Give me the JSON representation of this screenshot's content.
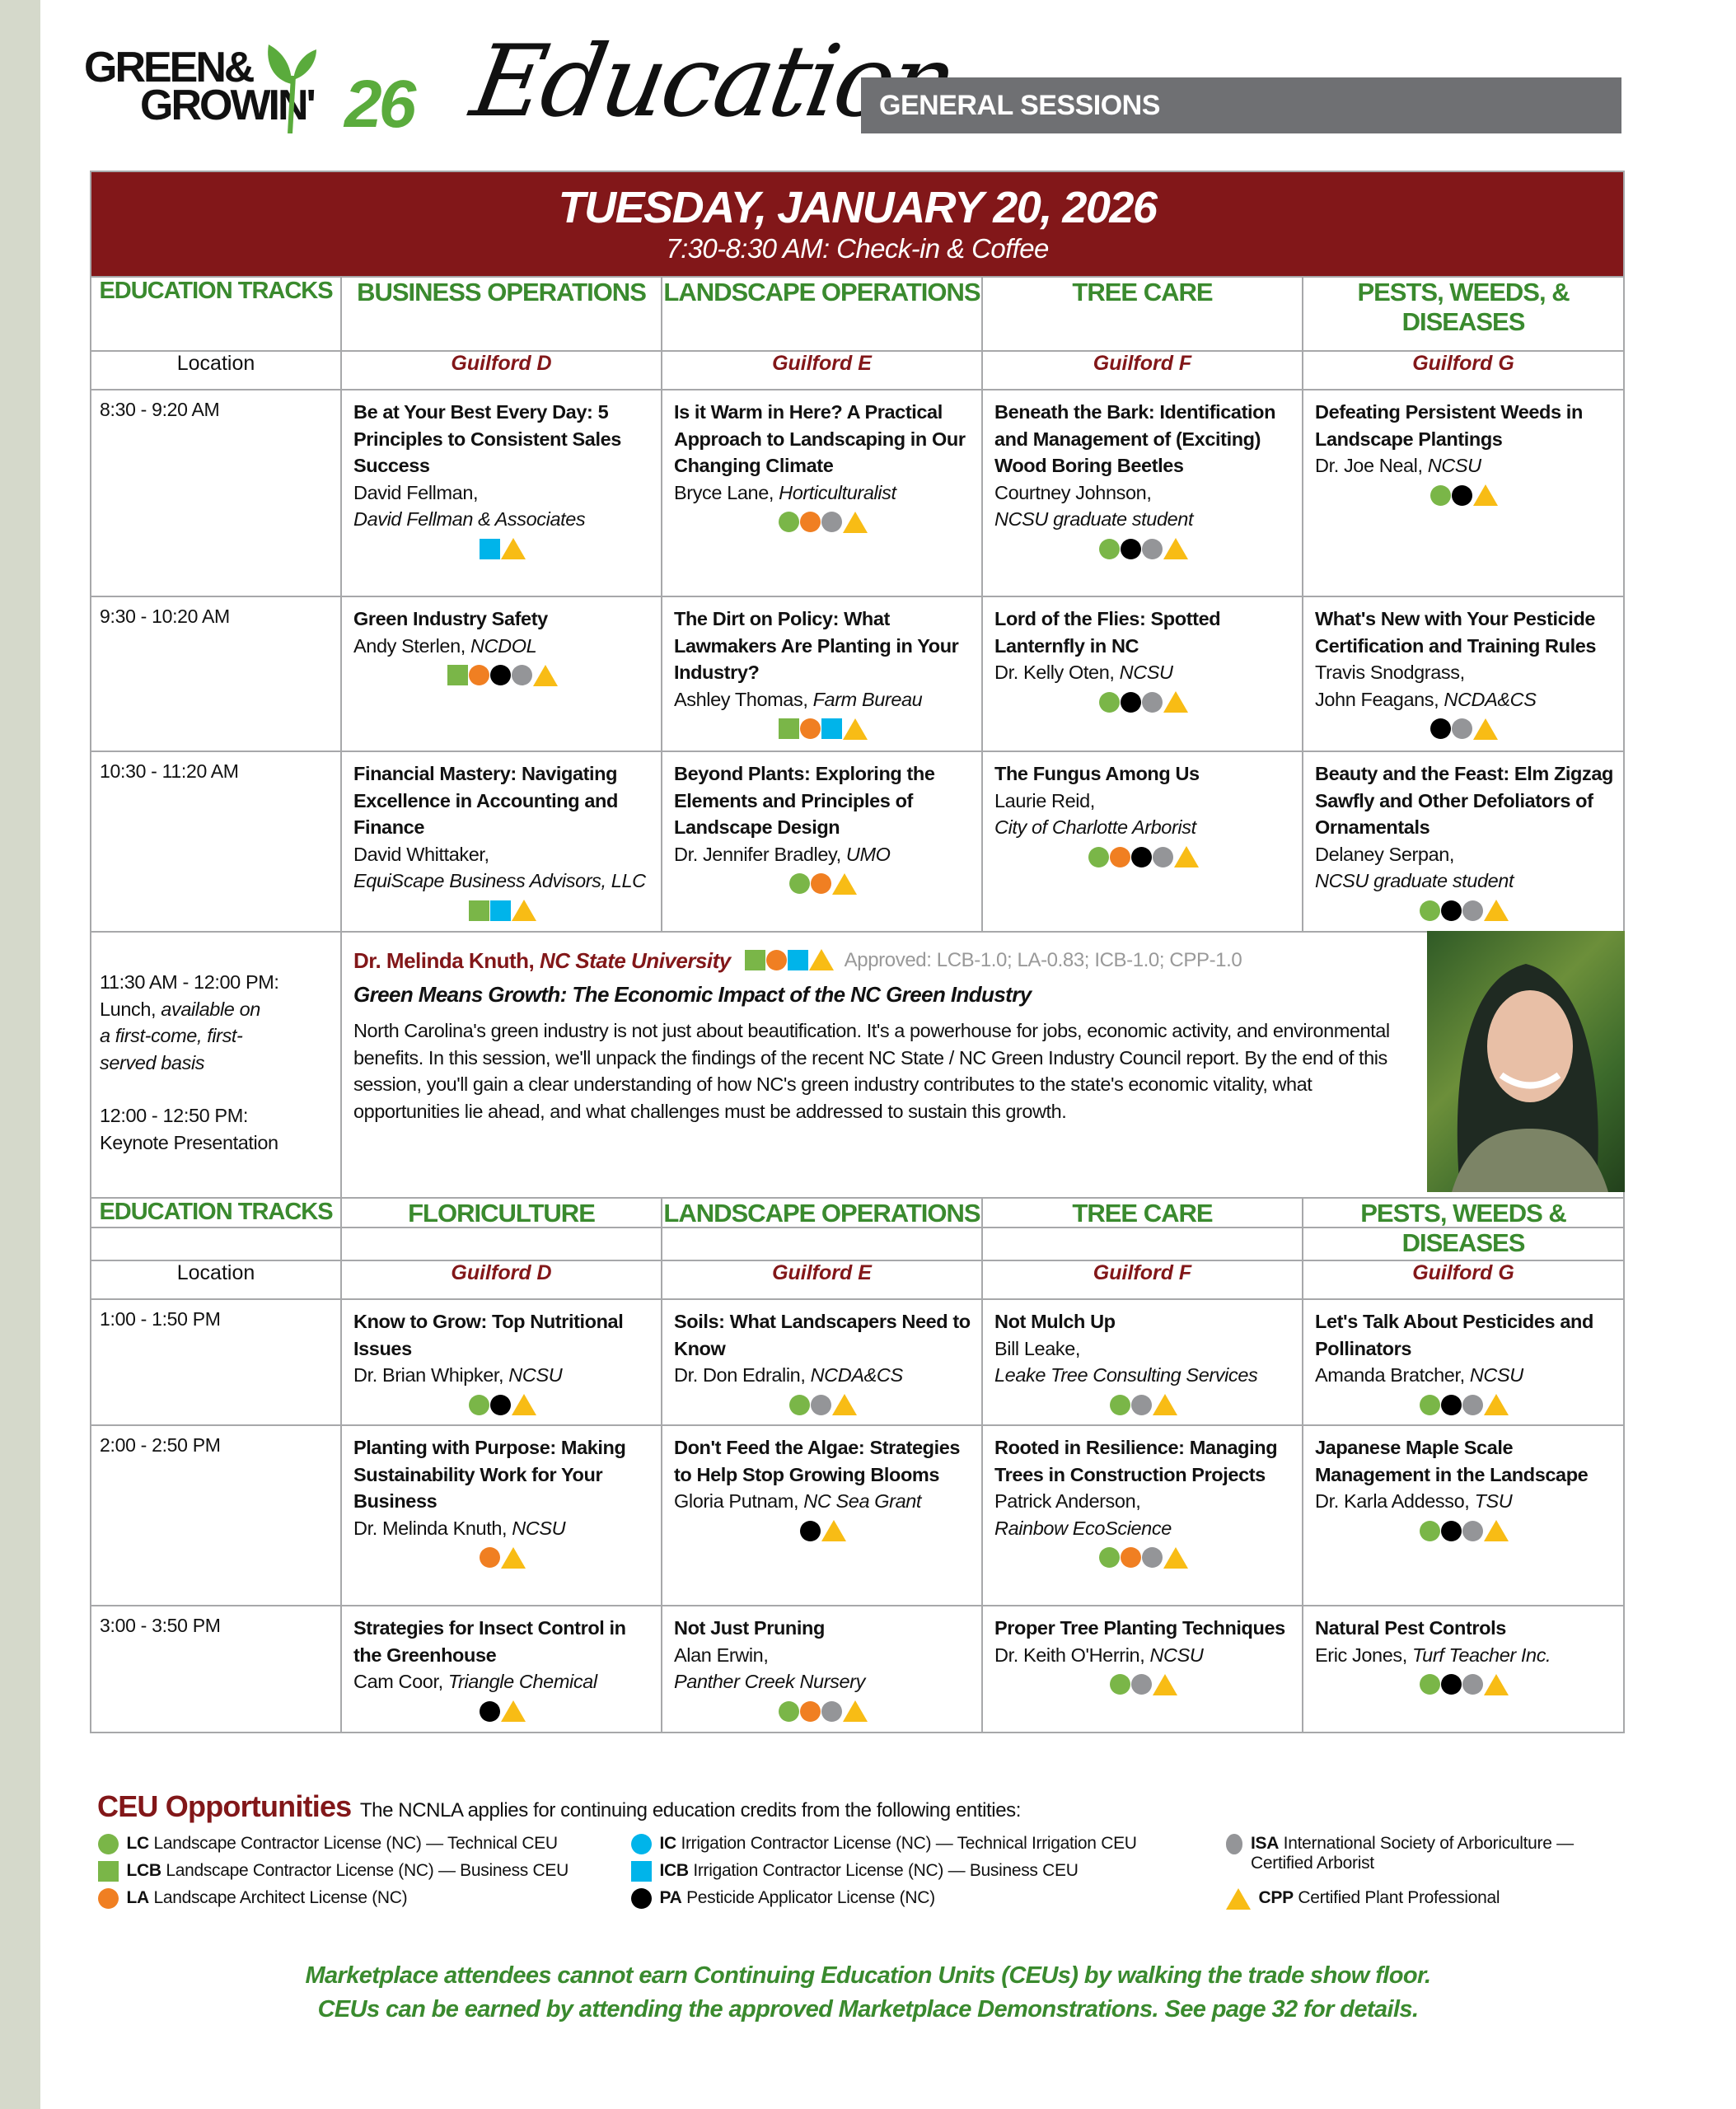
{
  "header": {
    "logo_line1": "GREEN&",
    "logo_line2": "GROWIN'",
    "logo_year": "26",
    "section_script": "Education",
    "section_bar": "GENERAL SESSIONS"
  },
  "colors": {
    "maroon": "#821719",
    "track_green": "#3a8a2e",
    "bar_gray": "#6f7073",
    "LC": "#7ab648",
    "LCB": "#7ab648",
    "LA": "#f07f22",
    "IC": "#00b4ea",
    "ICB": "#00b4ea",
    "PA": "#000000",
    "ISA": "#949598",
    "CPP": "#f8bc15"
  },
  "day": {
    "date": "TUESDAY, JANUARY 20, 2026",
    "checkin": "7:30-8:30 AM: Check-in & Coffee"
  },
  "morning": {
    "tracks": [
      "EDUCATION TRACKS",
      "BUSINESS OPERATIONS",
      "LANDSCAPE OPERATIONS",
      "TREE CARE",
      "PESTS, WEEDS, & DISEASES"
    ],
    "locations": [
      "Location",
      "Guilford D",
      "Guilford E",
      "Guilford F",
      "Guilford G"
    ],
    "rows": [
      {
        "time": "8:30 - 9:20 AM",
        "sessions": [
          {
            "title": "Be at Your Best Every Day: 5 Principles to Consistent Sales Success",
            "speaker": "David Fellman,",
            "affiliation": "David Fellman & Associates",
            "badges": [
              "ICB",
              "CPP"
            ]
          },
          {
            "title": "Is it Warm in Here? A Practical Approach to Landscaping in Our Changing Climate",
            "speaker": "Bryce Lane, ",
            "affiliation": "Horticulturalist",
            "badges": [
              "LC",
              "LA",
              "ISA",
              "CPP"
            ]
          },
          {
            "title": "Beneath the Bark: Identification and Management of (Exciting) Wood Boring Beetles",
            "speaker": "Courtney Johnson,",
            "affiliation": "NCSU graduate student",
            "badges": [
              "LC",
              "PA",
              "ISA",
              "CPP"
            ]
          },
          {
            "title": "Defeating Persistent Weeds in Landscape Plantings",
            "speaker": "Dr. Joe Neal, ",
            "affiliation": "NCSU",
            "badges": [
              "LC",
              "PA",
              "CPP"
            ]
          }
        ]
      },
      {
        "time": "9:30 - 10:20 AM",
        "sessions": [
          {
            "title": "Green Industry Safety",
            "speaker": "Andy Sterlen, ",
            "affiliation": "NCDOL",
            "badges": [
              "LCB",
              "LA",
              "PA",
              "ISA",
              "CPP"
            ]
          },
          {
            "title": "The Dirt on Policy: What Lawmakers Are Planting in Your Industry?",
            "speaker": "Ashley Thomas, ",
            "affiliation": "Farm Bureau",
            "badges": [
              "LCB",
              "LA",
              "ICB",
              "CPP"
            ]
          },
          {
            "title": "Lord of the Flies: Spotted Lanternfly in NC",
            "speaker": "Dr. Kelly Oten, ",
            "affiliation": "NCSU",
            "badges": [
              "LC",
              "PA",
              "ISA",
              "CPP"
            ]
          },
          {
            "title": "What's New with Your Pesticide Certification and Training Rules",
            "speaker": "Travis Snodgrass,\nJohn Feagans, ",
            "affiliation": "NCDA&CS",
            "badges": [
              "PA",
              "ISA",
              "CPP"
            ]
          }
        ]
      },
      {
        "time": "10:30 - 11:20 AM",
        "sessions": [
          {
            "title": "Financial Mastery: Navigating Excellence in Accounting and Finance",
            "speaker": "David Whittaker,",
            "affiliation": "EquiScape Business Advisors, LLC",
            "badges": [
              "LCB",
              "ICB",
              "CPP"
            ]
          },
          {
            "title": "Beyond Plants: Exploring the Elements and Principles of Landscape Design",
            "speaker": "Dr. Jennifer Bradley, ",
            "affiliation": "UMO",
            "badges": [
              "LC",
              "LA",
              "CPP"
            ]
          },
          {
            "title": "The Fungus Among Us",
            "speaker": "Laurie Reid,",
            "affiliation": "City of Charlotte Arborist",
            "badges": [
              "LC",
              "LA",
              "PA",
              "ISA",
              "CPP"
            ]
          },
          {
            "title": "Beauty and the Feast: Elm Zigzag Sawfly and Other Defoliators of Ornamentals",
            "speaker": "Delaney Serpan,",
            "affiliation": "NCSU graduate student",
            "badges": [
              "LC",
              "PA",
              "ISA",
              "CPP"
            ]
          }
        ]
      }
    ]
  },
  "keynote": {
    "lunch_time": "11:30 AM - 12:00 PM:",
    "lunch_label": "Lunch, ",
    "lunch_note": "available on a first-come, first-served basis",
    "keynote_time": "12:00 - 12:50 PM:",
    "keynote_label": "Keynote Presentation",
    "speaker_name": "Dr. Melinda Knuth, ",
    "speaker_org": "NC State University",
    "badges": [
      "LCB",
      "LA",
      "ICB",
      "CPP"
    ],
    "approved": "Approved: LCB-1.0; LA-0.83; ICB-1.0; CPP-1.0",
    "title": "Green Means Growth: The Economic Impact of the NC Green Industry",
    "description": "North Carolina's green industry is not just about beautification. It's a powerhouse for jobs, economic activity, and environmental benefits. In this session, we'll unpack the findings of the recent NC State / NC Green Industry Council report. By the end of this session, you'll gain a clear understanding of how NC's green industry contributes to the state's economic vitality, what opportunities lie ahead, and what challenges must be addressed to sustain this growth."
  },
  "afternoon": {
    "tracks": [
      "EDUCATION TRACKS",
      "FLORICULTURE",
      "LANDSCAPE OPERATIONS",
      "TREE CARE",
      "PESTS, WEEDS & DISEASES"
    ],
    "locations": [
      "Location",
      "Guilford D",
      "Guilford E",
      "Guilford F",
      "Guilford G"
    ],
    "rows": [
      {
        "time": "1:00 - 1:50 PM",
        "sessions": [
          {
            "title": "Know to Grow: Top Nutritional Issues",
            "speaker": "Dr. Brian Whipker, ",
            "affiliation": "NCSU",
            "badges": [
              "LC",
              "PA",
              "CPP"
            ]
          },
          {
            "title": "Soils: What Landscapers Need to Know",
            "speaker": "Dr. Don Edralin, ",
            "affiliation": "NCDA&CS",
            "badges": [
              "LC",
              "ISA",
              "CPP"
            ]
          },
          {
            "title": "Not Mulch Up",
            "speaker": "Bill Leake,",
            "affiliation": "Leake Tree Consulting Services",
            "badges": [
              "LC",
              "ISA",
              "CPP"
            ]
          },
          {
            "title": "Let's Talk About Pesticides and Pollinators",
            "speaker": "Amanda Bratcher, ",
            "affiliation": "NCSU",
            "badges": [
              "LC",
              "PA",
              "ISA",
              "CPP"
            ]
          }
        ]
      },
      {
        "time": "2:00 - 2:50 PM",
        "sessions": [
          {
            "title": "Planting with Purpose: Making Sustainability Work for Your Business",
            "speaker": "Dr. Melinda Knuth, ",
            "affiliation": "NCSU",
            "badges": [
              "LA",
              "CPP"
            ]
          },
          {
            "title": "Don't Feed the Algae: Strategies to Help Stop Growing Blooms",
            "speaker": "Gloria Putnam, ",
            "affiliation": "NC Sea Grant",
            "badges": [
              "PA",
              "CPP"
            ]
          },
          {
            "title": "Rooted in Resilience: Managing Trees in Construction Projects",
            "speaker": "Patrick Anderson,",
            "affiliation": "Rainbow EcoScience",
            "badges": [
              "LC",
              "LA",
              "ISA",
              "CPP"
            ]
          },
          {
            "title": "Japanese Maple Scale Management in the Landscape",
            "speaker": "Dr. Karla Addesso, ",
            "affiliation": "TSU",
            "badges": [
              "LC",
              "PA",
              "ISA",
              "CPP"
            ]
          }
        ]
      },
      {
        "time": "3:00 - 3:50 PM",
        "sessions": [
          {
            "title": "Strategies for Insect Control in the Greenhouse",
            "speaker": "Cam Coor, ",
            "affiliation": "Triangle Chemical",
            "badges": [
              "PA",
              "CPP"
            ]
          },
          {
            "title": "Not Just Pruning",
            "speaker": "Alan Erwin,",
            "affiliation": "Panther Creek Nursery",
            "badges": [
              "LC",
              "LA",
              "ISA",
              "CPP"
            ]
          },
          {
            "title": "Proper Tree Planting Techniques",
            "speaker": "Dr. Keith O'Herrin, ",
            "affiliation": "NCSU",
            "badges": [
              "LC",
              "ISA",
              "CPP"
            ]
          },
          {
            "title": "Natural Pest Controls",
            "speaker": "Eric Jones, ",
            "affiliation": "Turf Teacher Inc.",
            "badges": [
              "LC",
              "PA",
              "ISA",
              "CPP"
            ]
          }
        ]
      }
    ]
  },
  "ceu": {
    "title": "CEU Opportunities",
    "intro": "The NCNLA applies for continuing education credits from the following entities:",
    "legend": [
      {
        "code": "LC",
        "shape": "circle",
        "label": "Landscape Contractor License (NC) — Technical CEU"
      },
      {
        "code": "LCB",
        "shape": "square",
        "label": "Landscape Contractor License (NC) — Business CEU"
      },
      {
        "code": "LA",
        "shape": "circle",
        "label": "Landscape Architect License (NC)"
      },
      {
        "code": "IC",
        "shape": "circle",
        "label": "Irrigation Contractor License (NC) — Technical Irrigation CEU"
      },
      {
        "code": "ICB",
        "shape": "square",
        "label": "Irrigation Contractor License (NC) — Business CEU"
      },
      {
        "code": "PA",
        "shape": "circle",
        "label": "Pesticide Applicator License (NC)"
      },
      {
        "code": "ISA",
        "shape": "circle",
        "label": "International Society of Arboriculture — Certified Arborist"
      },
      {
        "code": "CPP",
        "shape": "triangle",
        "label": "Certified Plant Professional"
      }
    ]
  },
  "footer": {
    "line1": "Marketplace attendees cannot earn Continuing Education Units (CEUs) by walking the trade show floor.",
    "line2": "CEUs can be earned by attending the approved Marketplace Demonstrations. See page 32 for details."
  }
}
